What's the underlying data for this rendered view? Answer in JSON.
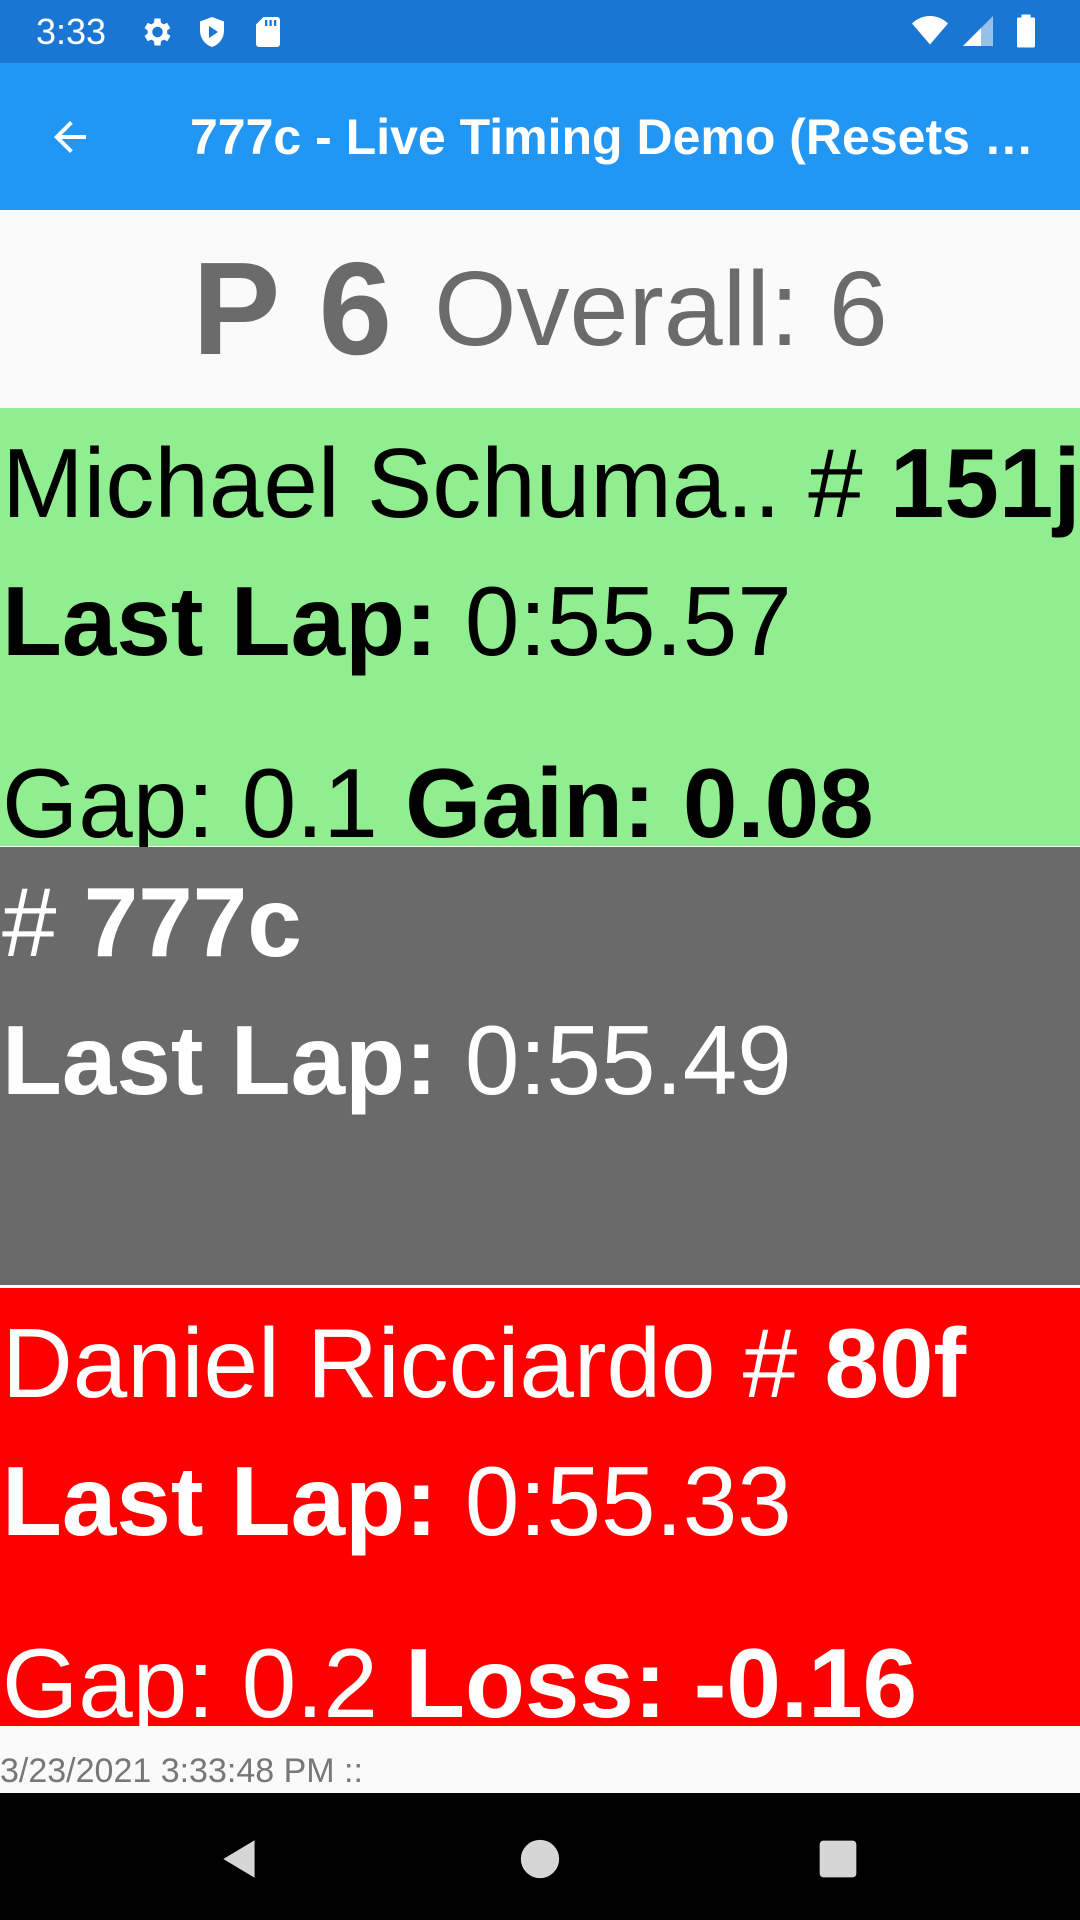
{
  "status_bar": {
    "time": "3:33",
    "icons_left": [
      "settings-gear-icon",
      "shield-play-icon",
      "sd-card-icon"
    ],
    "icons_right": [
      "wifi-icon",
      "signal-icon",
      "battery-icon"
    ]
  },
  "app_bar": {
    "title": "777c - Live Timing Demo (Resets e…"
  },
  "position_header": {
    "position": "P 6",
    "overall": "Overall: 6"
  },
  "ahead": {
    "name": "Michael Schuma..",
    "hash": " # ",
    "number": "151j",
    "last_lap_label": "Last Lap:",
    "last_lap_value": " 0:55.57",
    "gap_text": "Gap: 0.1 ",
    "delta_label": "Gain: ",
    "delta_value": "0.08",
    "bg_color": "#90ee90"
  },
  "self": {
    "hash": " # ",
    "number": "777c",
    "last_lap_label": "Last Lap:",
    "last_lap_value": " 0:55.49",
    "bg_color": "#6a6a6a"
  },
  "behind": {
    "name": "Daniel Ricciardo",
    "hash": " # ",
    "number": "80f",
    "last_lap_label": "Last Lap:",
    "last_lap_value": " 0:55.33",
    "gap_text": "Gap: 0.2 ",
    "delta_label": "Loss: ",
    "delta_value": "-0.16",
    "bg_color": "#ff0000"
  },
  "footer": {
    "timestamp": "3/23/2021 3:33:48 PM ::"
  },
  "nav_bar": {
    "buttons": [
      "back-triangle-icon",
      "home-circle-icon",
      "recents-square-icon"
    ]
  }
}
